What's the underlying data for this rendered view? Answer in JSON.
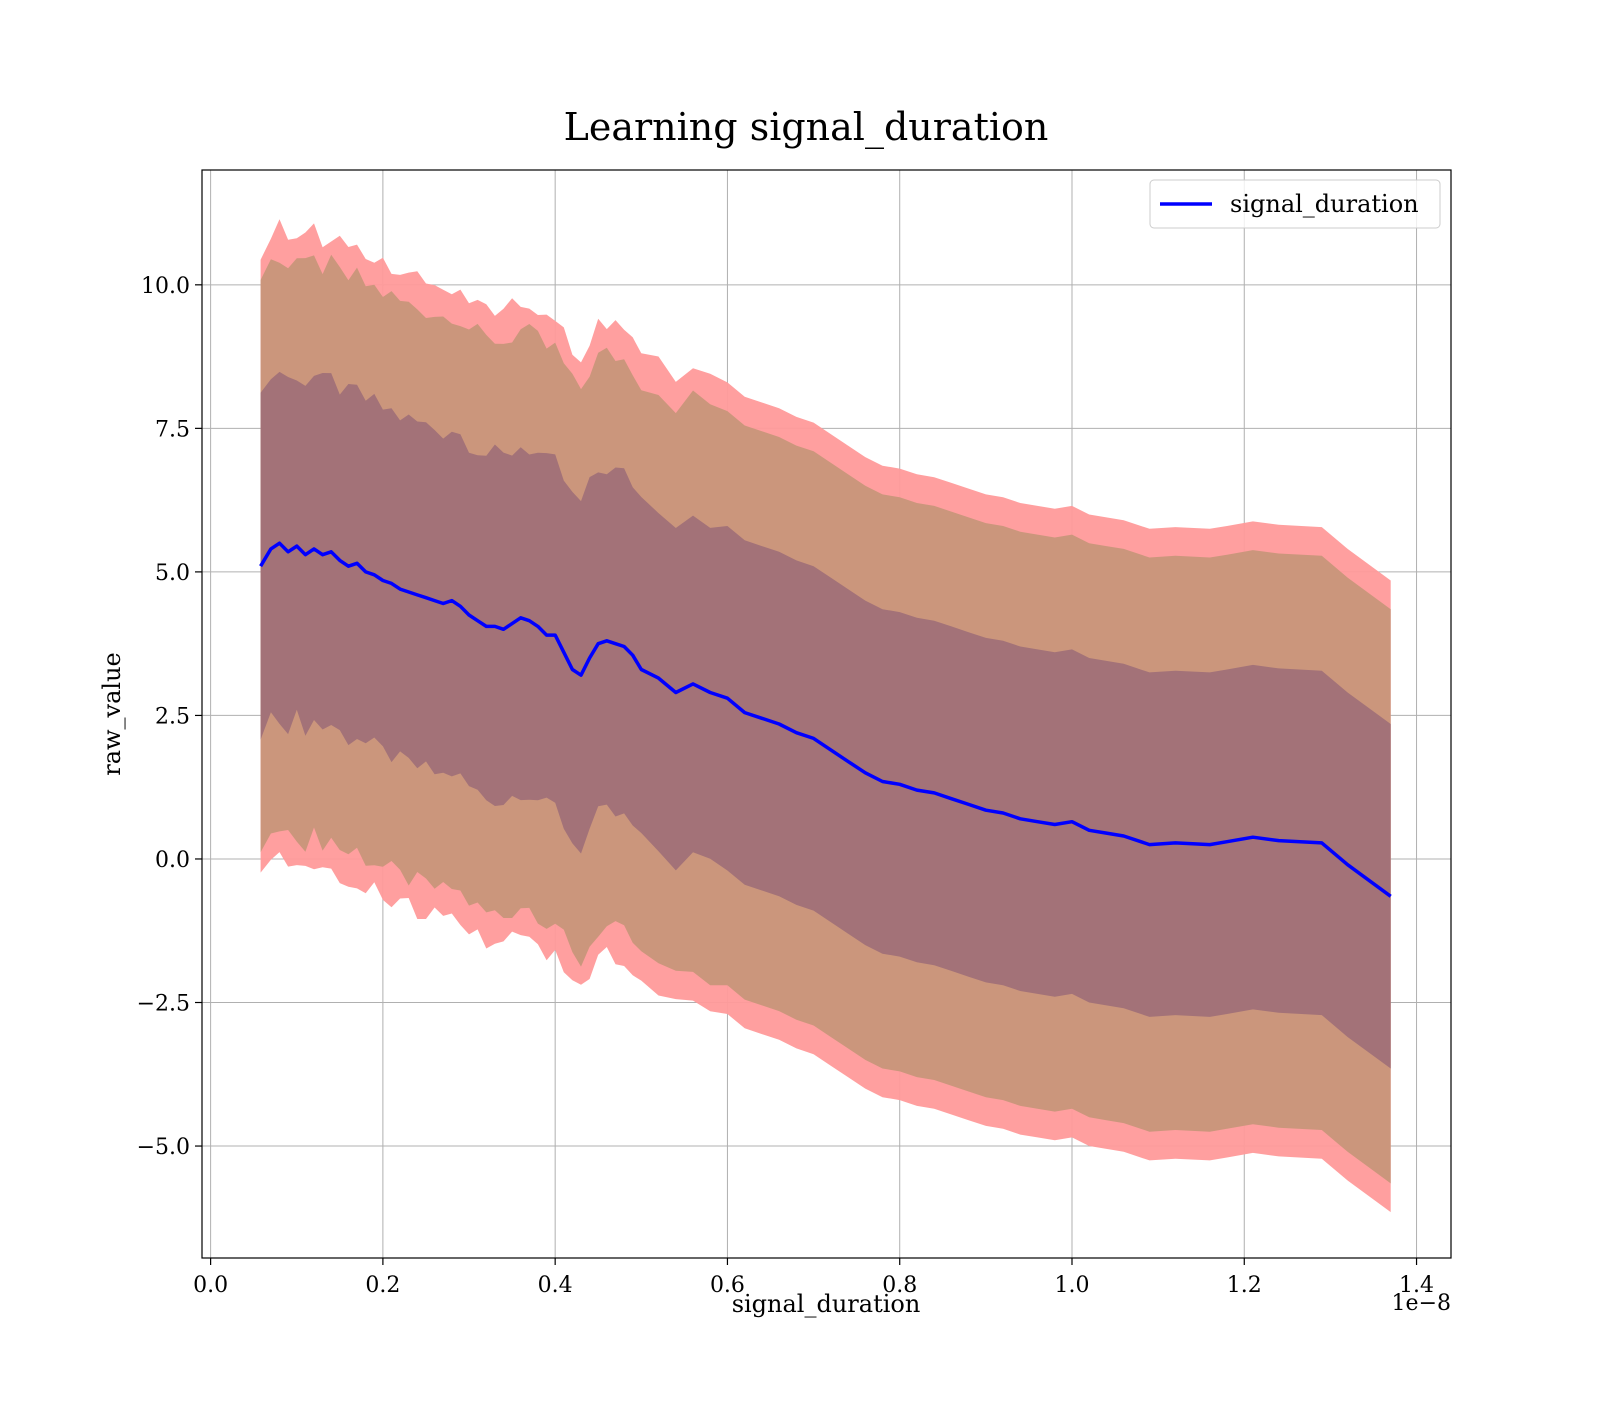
{
  "chart_data": {
    "type": "line",
    "title": "Learning signal_duration",
    "xlabel": "signal_duration",
    "ylabel": "raw_value",
    "x_offset_label": "1e−8",
    "xlim": [
      -0.01,
      1.44
    ],
    "ylim": [
      -6.95,
      12.0
    ],
    "x_ticks": [
      0.0,
      0.2,
      0.4,
      0.6,
      0.8,
      1.0,
      1.2,
      1.4
    ],
    "x_tick_labels": [
      "0.0",
      "0.2",
      "0.4",
      "0.6",
      "0.8",
      "1.0",
      "1.2",
      "1.4"
    ],
    "y_ticks": [
      -5.0,
      -2.5,
      0.0,
      2.5,
      5.0,
      7.5,
      10.0
    ],
    "y_tick_labels": [
      "−5.0",
      "−2.5",
      "0.0",
      "2.5",
      "5.0",
      "7.5",
      "10.0"
    ],
    "grid": true,
    "legend_position": "top-right",
    "series": [
      {
        "name": "signal_duration",
        "color": "#0000ff",
        "x": [
          0.058,
          0.07,
          0.08,
          0.09,
          0.1,
          0.11,
          0.12,
          0.13,
          0.14,
          0.15,
          0.16,
          0.17,
          0.18,
          0.19,
          0.2,
          0.21,
          0.22,
          0.23,
          0.24,
          0.25,
          0.26,
          0.27,
          0.28,
          0.29,
          0.3,
          0.31,
          0.32,
          0.33,
          0.34,
          0.35,
          0.36,
          0.37,
          0.38,
          0.39,
          0.4,
          0.41,
          0.42,
          0.43,
          0.44,
          0.45,
          0.46,
          0.47,
          0.48,
          0.49,
          0.5,
          0.52,
          0.54,
          0.56,
          0.58,
          0.6,
          0.62,
          0.64,
          0.66,
          0.68,
          0.7,
          0.72,
          0.74,
          0.76,
          0.78,
          0.8,
          0.82,
          0.84,
          0.86,
          0.88,
          0.9,
          0.92,
          0.94,
          0.96,
          0.98,
          1.0,
          1.02,
          1.04,
          1.06,
          1.09,
          1.12,
          1.16,
          1.18,
          1.21,
          1.24,
          1.29,
          1.32,
          1.37
        ],
        "y": [
          5.1,
          5.4,
          5.5,
          5.35,
          5.45,
          5.3,
          5.4,
          5.3,
          5.35,
          5.2,
          5.1,
          5.15,
          5.0,
          4.95,
          4.85,
          4.8,
          4.7,
          4.65,
          4.6,
          4.55,
          4.5,
          4.45,
          4.5,
          4.4,
          4.25,
          4.15,
          4.05,
          4.05,
          4.0,
          4.1,
          4.2,
          4.15,
          4.05,
          3.9,
          3.9,
          3.6,
          3.3,
          3.2,
          3.5,
          3.75,
          3.8,
          3.75,
          3.7,
          3.55,
          3.3,
          3.15,
          2.9,
          3.05,
          2.9,
          2.8,
          2.55,
          2.45,
          2.35,
          2.2,
          2.1,
          1.9,
          1.7,
          1.5,
          1.35,
          1.3,
          1.2,
          1.15,
          1.05,
          0.95,
          0.85,
          0.8,
          0.7,
          0.65,
          0.6,
          0.65,
          0.5,
          0.45,
          0.4,
          0.25,
          0.28,
          0.25,
          0.3,
          0.38,
          0.32,
          0.28,
          -0.1,
          -0.65
        ]
      }
    ],
    "bands": [
      {
        "id": "outer",
        "color": "#ff9a9a",
        "lower_offset": -5.5,
        "upper_offset": 5.5
      },
      {
        "id": "middle",
        "color": "#c8967a",
        "lower_offset": -5.0,
        "upper_offset": 5.0
      },
      {
        "id": "inner",
        "color": "#a07078",
        "lower_offset": -3.0,
        "upper_offset": 3.0
      }
    ]
  }
}
